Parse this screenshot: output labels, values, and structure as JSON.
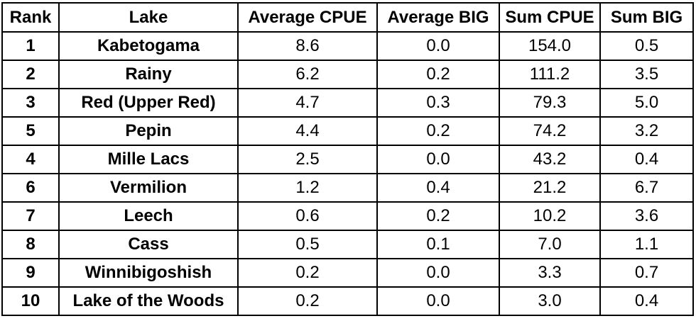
{
  "table": {
    "headers": [
      "Rank",
      "Lake",
      "Average CPUE",
      "Average BIG",
      "Sum CPUE",
      "Sum BIG"
    ],
    "rows": [
      {
        "rank": "1",
        "lake": "Kabetogama",
        "avg_cpue": "8.6",
        "avg_big": "0.0",
        "sum_cpue": "154.0",
        "sum_big": "0.5"
      },
      {
        "rank": "2",
        "lake": "Rainy",
        "avg_cpue": "6.2",
        "avg_big": "0.2",
        "sum_cpue": "111.2",
        "sum_big": "3.5"
      },
      {
        "rank": "3",
        "lake": "Red (Upper Red)",
        "avg_cpue": "4.7",
        "avg_big": "0.3",
        "sum_cpue": "79.3",
        "sum_big": "5.0"
      },
      {
        "rank": "5",
        "lake": "Pepin",
        "avg_cpue": "4.4",
        "avg_big": "0.2",
        "sum_cpue": "74.2",
        "sum_big": "3.2"
      },
      {
        "rank": "4",
        "lake": "Mille Lacs",
        "avg_cpue": "2.5",
        "avg_big": "0.0",
        "sum_cpue": "43.2",
        "sum_big": "0.4"
      },
      {
        "rank": "6",
        "lake": "Vermilion",
        "avg_cpue": "1.2",
        "avg_big": "0.4",
        "sum_cpue": "21.2",
        "sum_big": "6.7"
      },
      {
        "rank": "7",
        "lake": "Leech",
        "avg_cpue": "0.6",
        "avg_big": "0.2",
        "sum_cpue": "10.2",
        "sum_big": "3.6"
      },
      {
        "rank": "8",
        "lake": "Cass",
        "avg_cpue": "0.5",
        "avg_big": "0.1",
        "sum_cpue": "7.0",
        "sum_big": "1.1"
      },
      {
        "rank": "9",
        "lake": "Winnibigoshish",
        "avg_cpue": "0.2",
        "avg_big": "0.0",
        "sum_cpue": "3.3",
        "sum_big": "0.7"
      },
      {
        "rank": "10",
        "lake": "Lake of the Woods",
        "avg_cpue": "0.2",
        "avg_big": "0.0",
        "sum_cpue": "3.0",
        "sum_big": "0.4"
      }
    ]
  }
}
